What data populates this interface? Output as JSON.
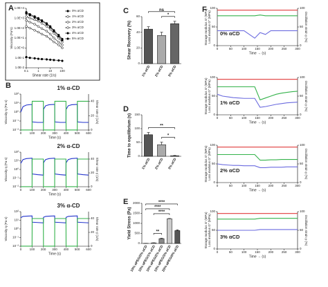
{
  "chart_data": [
    {
      "panel": "A",
      "type": "line",
      "xlabel": "Shear rate (1/s)",
      "ylabel": "Viscosity (Pa*s)",
      "xlog": true,
      "ylog": true,
      "legend": "right",
      "x": [
        0.1,
        0.2,
        0.5,
        1,
        2,
        5,
        10,
        20,
        50,
        100
      ],
      "xlim": [
        0.1,
        100
      ],
      "xticks": [
        0.1,
        1,
        10,
        100
      ],
      "ylim": [
        0.01,
        10000
      ],
      "yticks": [
        {
          "value": 0.01,
          "label": "1.0E-2"
        },
        {
          "value": 0.1,
          "label": "1.0E-1"
        },
        {
          "value": 1,
          "label": "1.0E+0"
        },
        {
          "value": 10,
          "label": "1.0E+1"
        },
        {
          "value": 100,
          "label": "1.0E+2"
        },
        {
          "value": 1000,
          "label": "1.0E+3"
        },
        {
          "value": 10000,
          "label": "1.0E+4"
        }
      ],
      "series": [
        {
          "name": "0% αCD",
          "color": "#000000",
          "marker": "filled",
          "values": [
            0.12,
            0.1,
            0.09,
            0.08,
            0.075,
            0.07,
            0.065,
            0.06,
            0.055,
            0.05
          ]
        },
        {
          "name": "1% αCD",
          "color": "#000000",
          "marker": "open",
          "values": [
            150,
            100,
            60,
            40,
            25,
            15,
            8,
            4,
            2,
            1
          ]
        },
        {
          "name": "2% αCD",
          "color": "#000000",
          "marker": "open",
          "values": [
            600,
            400,
            250,
            150,
            90,
            50,
            25,
            10,
            4,
            2
          ]
        },
        {
          "name": "3% αCD",
          "color": "#000000",
          "marker": "open",
          "values": [
            1500,
            1000,
            700,
            500,
            300,
            150,
            80,
            30,
            10,
            4
          ]
        },
        {
          "name": "4% αCD",
          "color": "#000000",
          "marker": "filled",
          "values": [
            3000,
            2000,
            1200,
            800,
            500,
            250,
            120,
            50,
            15,
            6
          ]
        },
        {
          "name": "5% αCD",
          "color": "#000000",
          "marker": "filled",
          "values": [
            4000,
            2500,
            1500,
            1000,
            600,
            300,
            150,
            60,
            20,
            8
          ]
        }
      ]
    },
    {
      "panel": "B",
      "type": "line",
      "title": "1% α-CD",
      "xlabel": "Time (s)",
      "ylabel": "Viscosity η (Pa·s)",
      "y2label": "Shear rate γ̇ (1/s)",
      "ylog": true,
      "x": [
        0,
        20,
        50,
        100,
        101,
        150,
        200,
        201,
        220,
        250,
        300,
        301,
        350,
        400,
        401,
        420,
        450,
        500,
        501,
        550,
        600
      ],
      "xlim": [
        0,
        600
      ],
      "xticks": [
        0,
        100,
        200,
        300,
        400,
        500,
        600
      ],
      "ylim": [
        0.01,
        100
      ],
      "yticks": [
        {
          "value": 0.01,
          "label": "10⁻²"
        },
        {
          "value": 0.1,
          "label": "10⁻¹"
        },
        {
          "value": 1,
          "label": "10⁰"
        },
        {
          "value": 10,
          "label": "10¹"
        },
        {
          "value": 100,
          "label": "10²"
        }
      ],
      "y2lim": [
        0,
        50
      ],
      "y2ticks": [
        0,
        20,
        40
      ],
      "series": [
        {
          "name": "Viscosity",
          "color": "#2233cc",
          "values": [
            1,
            4,
            6,
            7,
            0.08,
            0.07,
            0.07,
            2,
            5,
            6.5,
            7,
            0.08,
            0.07,
            0.07,
            2,
            5,
            6.5,
            7,
            0.08,
            0.07,
            0.07
          ]
        },
        {
          "name": "Shear rate",
          "color": "#33b24a",
          "axis": "y2",
          "values": [
            0.1,
            0.1,
            0.1,
            0.1,
            40,
            40,
            40,
            0.1,
            0.1,
            0.1,
            0.1,
            40,
            40,
            40,
            0.1,
            0.1,
            0.1,
            0.1,
            40,
            40,
            40
          ]
        }
      ]
    },
    {
      "type": "line",
      "title": "2% α-CD",
      "xlabel": "Time (s)",
      "ylabel": "Viscosity η (Pa·s)",
      "y2label": "Shear rate γ̇ (1/s)",
      "ylog": true,
      "x": [
        0,
        20,
        50,
        100,
        101,
        150,
        200,
        201,
        220,
        250,
        300,
        301,
        350,
        400,
        401,
        420,
        450,
        500,
        501,
        550,
        600
      ],
      "xlim": [
        0,
        600
      ],
      "xticks": [
        0,
        100,
        200,
        300,
        400,
        500,
        600
      ],
      "ylim": [
        0.01,
        100
      ],
      "yticks": [
        {
          "value": 0.01,
          "label": "10⁻²"
        },
        {
          "value": 0.1,
          "label": "10⁻¹"
        },
        {
          "value": 1,
          "label": "10⁰"
        },
        {
          "value": 10,
          "label": "10¹"
        },
        {
          "value": 100,
          "label": "10²"
        }
      ],
      "y2lim": [
        0,
        50
      ],
      "y2ticks": [
        0,
        20,
        40
      ],
      "series": [
        {
          "name": "Viscosity",
          "color": "#2233cc",
          "values": [
            5,
            14,
            18,
            20,
            0.3,
            0.25,
            0.22,
            6,
            14,
            18,
            20,
            0.3,
            0.25,
            0.22,
            6,
            14,
            18,
            20,
            0.3,
            0.25,
            0.22
          ]
        },
        {
          "name": "Shear rate",
          "color": "#33b24a",
          "axis": "y2",
          "values": [
            0.1,
            0.1,
            0.1,
            0.1,
            40,
            40,
            40,
            0.1,
            0.1,
            0.1,
            0.1,
            40,
            40,
            40,
            0.1,
            0.1,
            0.1,
            0.1,
            40,
            40,
            40
          ]
        }
      ]
    },
    {
      "type": "line",
      "title": "3% α-CD",
      "xlabel": "Time (s)",
      "ylabel": "Viscosity η (Pa·s)",
      "y2label": "Shear rate γ̇ (1/s)",
      "ylog": true,
      "x": [
        0,
        20,
        50,
        100,
        101,
        150,
        200,
        201,
        220,
        250,
        300,
        301,
        350,
        400,
        401,
        420,
        450,
        500,
        501,
        550,
        600
      ],
      "xlim": [
        0,
        600
      ],
      "xticks": [
        0,
        100,
        200,
        300,
        400,
        500,
        600
      ],
      "ylim": [
        0.01,
        100
      ],
      "yticks": [
        {
          "value": 0.01,
          "label": "10⁻²"
        },
        {
          "value": 0.1,
          "label": "10⁻¹"
        },
        {
          "value": 1,
          "label": "10⁰"
        },
        {
          "value": 10,
          "label": "10¹"
        },
        {
          "value": 100,
          "label": "10²"
        }
      ],
      "y2lim": [
        0,
        50
      ],
      "y2ticks": [
        0,
        20,
        40
      ],
      "series": [
        {
          "name": "Viscosity",
          "color": "#2233cc",
          "values": [
            20,
            28,
            30,
            32,
            6,
            5.5,
            5,
            22,
            28,
            30,
            32,
            6,
            5.5,
            5,
            22,
            28,
            30,
            32,
            6,
            5.5,
            5
          ]
        },
        {
          "name": "Shear rate",
          "color": "#33b24a",
          "axis": "y2",
          "values": [
            0.1,
            0.1,
            0.1,
            0.1,
            40,
            40,
            40,
            0.1,
            0.1,
            0.1,
            0.1,
            40,
            40,
            40,
            0.1,
            0.1,
            0.1,
            0.1,
            40,
            40,
            40
          ]
        }
      ]
    },
    {
      "panel": "C",
      "type": "bar",
      "ylabel": "Shear Recovery (%)",
      "categories": [
        "1% αCD",
        "2% αCD",
        "3% αCD"
      ],
      "values": [
        44,
        36,
        51
      ],
      "errors": [
        3,
        4,
        3
      ],
      "colors": [
        "#555555",
        "#aaaaaa",
        "#666666"
      ],
      "ylim": [
        0,
        60
      ],
      "yticks": [
        0,
        20,
        40,
        60
      ],
      "annotations": [
        {
          "text": "ns",
          "from": 0,
          "to": 2
        },
        {
          "text": "*",
          "from": 1,
          "to": 2
        }
      ]
    },
    {
      "panel": "D",
      "type": "bar",
      "ylabel": "Time to equilibrium (s)",
      "categories": [
        "1% αCD",
        "2% αCD",
        "3% αCD"
      ],
      "values": [
        78,
        42,
        2
      ],
      "errors": [
        8,
        9,
        1
      ],
      "colors": [
        "#555555",
        "#aaaaaa",
        "#666666"
      ],
      "ylim": [
        0,
        150
      ],
      "yticks": [
        0,
        50,
        100,
        150
      ],
      "annotations": [
        {
          "text": "**",
          "from": 0,
          "to": 2
        },
        {
          "text": "*",
          "from": 1,
          "to": 2
        }
      ]
    },
    {
      "panel": "E",
      "type": "bar",
      "ylabel": "Yield Stress (Pa)",
      "categories": [
        "10% αPEG/0% αCD",
        "10% αPEG/1% αCD",
        "10% αPEG/2% αCD",
        "10% αPEG/3% αCD",
        "20% αPEG/0% αCD"
      ],
      "values": [
        5,
        30,
        240,
        1230,
        640
      ],
      "errors": [
        2,
        5,
        20,
        15,
        40
      ],
      "colors": [
        "#ffffff",
        "#ffffff",
        "#888888",
        "#cccccc",
        "#555555"
      ],
      "ylim": [
        0,
        2000
      ],
      "yticks": [
        0,
        500,
        1000,
        1500,
        2000
      ],
      "annotations": [
        {
          "text": "**",
          "from": 1,
          "to": 2
        },
        {
          "text": "****",
          "from": 1,
          "to": 3
        },
        {
          "text": "****",
          "from": 0,
          "to": 3
        },
        {
          "text": "****",
          "from": 0,
          "to": 4
        }
      ]
    },
    {
      "panel": "F",
      "type": "line",
      "label": "0% αCD",
      "xlabel": "Time → (s)",
      "ylabel": "Storage modulus G' (MPa)",
      "ylabel_2": "Loss modulus G'' (MPa)",
      "y2label": "Oscillation strain γ (%)",
      "x": [
        0,
        20,
        40,
        60,
        80,
        100,
        120,
        140,
        160,
        180,
        200,
        220,
        240,
        260,
        280,
        300
      ],
      "xlim": [
        0,
        300
      ],
      "xticks": [
        0,
        50,
        100,
        150,
        200,
        250,
        300
      ],
      "ylim": [
        0,
        100
      ],
      "yticks": [
        0,
        50,
        100
      ],
      "y2lim": [
        0,
        100
      ],
      "y2ticks": [
        0,
        50,
        100
      ],
      "series": [
        {
          "name": "G'",
          "color": "#33b24a",
          "values": [
            80,
            80,
            80,
            80,
            80,
            80,
            80,
            80,
            82,
            80,
            80,
            80,
            80,
            80,
            80,
            80
          ]
        },
        {
          "name": "G''",
          "color": "#6a6adf",
          "values": [
            40,
            40,
            40,
            40,
            40,
            40,
            30,
            20,
            35,
            30,
            40,
            40,
            40,
            40,
            40,
            40
          ]
        },
        {
          "name": "γ",
          "color": "#e03a3a",
          "axis": "y2",
          "values": [
            95,
            95,
            95,
            95,
            95,
            95,
            95,
            95,
            95,
            95,
            95,
            95,
            95,
            95,
            95,
            95
          ]
        }
      ]
    },
    {
      "type": "line",
      "label": "1% αCD",
      "xlabel": "Time → (s)",
      "ylabel": "Storage modulus G' (MPa)",
      "ylabel_2": "Loss modulus G'' (MPa)",
      "y2label": "Oscillation strain γ (%)",
      "x": [
        0,
        20,
        40,
        60,
        80,
        100,
        120,
        140,
        160,
        180,
        200,
        220,
        240,
        260,
        280,
        300
      ],
      "xlim": [
        0,
        300
      ],
      "xticks": [
        0,
        50,
        100,
        150,
        200,
        250,
        300
      ],
      "ylim": [
        0,
        100
      ],
      "yticks": [
        0,
        50,
        100
      ],
      "y2lim": [
        0,
        100
      ],
      "y2ticks": [
        0,
        50,
        100
      ],
      "series": [
        {
          "name": "G'",
          "color": "#33b24a",
          "values": [
            75,
            75,
            75,
            75,
            75,
            75,
            75,
            75,
            40,
            45,
            50,
            55,
            58,
            60,
            62,
            63
          ]
        },
        {
          "name": "G''",
          "color": "#6a6adf",
          "values": [
            55,
            50,
            48,
            46,
            45,
            44,
            44,
            44,
            20,
            22,
            25,
            28,
            30,
            32,
            33,
            34
          ]
        },
        {
          "name": "γ",
          "color": "#e03a3a",
          "axis": "y2",
          "values": [
            95,
            95,
            95,
            95,
            95,
            95,
            95,
            95,
            95,
            95,
            95,
            95,
            95,
            95,
            95,
            95
          ]
        }
      ]
    },
    {
      "type": "line",
      "label": "2% αCD",
      "xlabel": "Time → (s)",
      "ylabel": "Storage modulus G' (MPa)",
      "ylabel_2": "Loss modulus G'' (MPa)",
      "y2label": "Oscillation strain γ (%)",
      "x": [
        0,
        20,
        40,
        60,
        80,
        100,
        120,
        140,
        160,
        180,
        200,
        220,
        240,
        260,
        280,
        300
      ],
      "xlim": [
        0,
        300
      ],
      "xticks": [
        0,
        50,
        100,
        150,
        200,
        250,
        300
      ],
      "ylim": [
        0,
        100
      ],
      "yticks": [
        0,
        50,
        100
      ],
      "y2lim": [
        0,
        100
      ],
      "y2ticks": [
        0,
        50,
        100
      ],
      "series": [
        {
          "name": "G'",
          "color": "#33b24a",
          "values": [
            75,
            75,
            75,
            75,
            75,
            75,
            75,
            75,
            60,
            60,
            61,
            61,
            62,
            62,
            62,
            62
          ]
        },
        {
          "name": "G''",
          "color": "#6a6adf",
          "values": [
            50,
            48,
            47,
            46,
            46,
            45,
            45,
            45,
            40,
            40,
            41,
            41,
            41,
            42,
            42,
            42
          ]
        },
        {
          "name": "γ",
          "color": "#e03a3a",
          "axis": "y2",
          "values": [
            95,
            95,
            95,
            95,
            95,
            95,
            95,
            95,
            95,
            95,
            95,
            95,
            95,
            95,
            95,
            95
          ]
        }
      ]
    },
    {
      "type": "line",
      "label": "3% αCD",
      "xlabel": "Time → (s)",
      "ylabel": "Storage modulus G' (MPa)",
      "ylabel_2": "Loss modulus G'' (MPa)",
      "y2label": "Oscillation strain γ (%)",
      "x": [
        0,
        20,
        40,
        60,
        80,
        100,
        120,
        140,
        160,
        180,
        200,
        220,
        240,
        260,
        280,
        300
      ],
      "xlim": [
        0,
        300
      ],
      "xticks": [
        0,
        50,
        100,
        150,
        200,
        250,
        300
      ],
      "ylim": [
        0,
        100
      ],
      "yticks": [
        0,
        50,
        100
      ],
      "y2lim": [
        0,
        100
      ],
      "y2ticks": [
        0,
        50,
        100
      ],
      "series": [
        {
          "name": "G'",
          "color": "#33b24a",
          "values": [
            80,
            80,
            80,
            80,
            80,
            80,
            80,
            80,
            82,
            82,
            82,
            82,
            82,
            82,
            82,
            82
          ]
        },
        {
          "name": "G''",
          "color": "#6a6adf",
          "values": [
            50,
            50,
            50,
            50,
            50,
            50,
            50,
            50,
            52,
            52,
            52,
            52,
            52,
            52,
            52,
            52
          ]
        },
        {
          "name": "γ",
          "color": "#e03a3a",
          "axis": "y2",
          "values": [
            95,
            95,
            95,
            95,
            95,
            95,
            95,
            95,
            95,
            95,
            95,
            95,
            95,
            95,
            95,
            95
          ]
        }
      ]
    }
  ]
}
